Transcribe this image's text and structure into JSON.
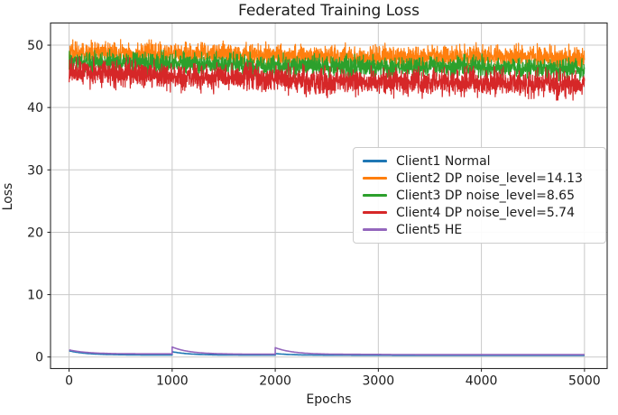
{
  "figure": {
    "background": "#ffffff"
  },
  "chart_data": {
    "type": "line",
    "title": "Federated Training Loss",
    "xlabel": "Epochs",
    "ylabel": "Loss",
    "xlim": [
      -180,
      5220
    ],
    "ylim": [
      -1.85,
      53.55
    ],
    "xticks": [
      0,
      1000,
      2000,
      3000,
      4000,
      5000
    ],
    "yticks": [
      0,
      10,
      20,
      30,
      40,
      50
    ],
    "grid": true,
    "grid_color": "#c9c9c9",
    "spine_color": "#2a2a2a",
    "tick_color": "#1c1c1c",
    "legend_position": "center right",
    "series": [
      {
        "name": "Client1 Normal",
        "color": "#1f77b4",
        "kind": "decay",
        "tau": 170,
        "end": 5000,
        "segments": [
          {
            "start": 0,
            "peak": 1.0,
            "settle": 0.33
          },
          {
            "start": 1000,
            "peak": 0.85,
            "settle": 0.3
          },
          {
            "start": 2000,
            "peak": 0.55,
            "settle": 0.28
          },
          {
            "start": 3000,
            "peak": 0.28,
            "settle": 0.26
          }
        ]
      },
      {
        "name": "Client2 DP noise_level=14.13",
        "color": "#ff7f0e",
        "kind": "noisy",
        "noise_sigma": 0.85,
        "trend": [
          [
            0,
            48.8
          ],
          [
            1000,
            48.6
          ],
          [
            2000,
            48.3
          ],
          [
            3000,
            48.1
          ],
          [
            4000,
            48.2
          ],
          [
            5000,
            47.9
          ]
        ]
      },
      {
        "name": "Client3 DP noise_level=8.65",
        "color": "#2ca02c",
        "kind": "noisy",
        "noise_sigma": 0.8,
        "trend": [
          [
            0,
            47.3
          ],
          [
            1000,
            47.1
          ],
          [
            2000,
            46.7
          ],
          [
            3000,
            46.4
          ],
          [
            4000,
            46.5
          ],
          [
            5000,
            46.1
          ]
        ]
      },
      {
        "name": "Client4 DP noise_level=5.74",
        "color": "#d62728",
        "kind": "noisy",
        "noise_sigma": 1.0,
        "trend": [
          [
            0,
            45.6
          ],
          [
            800,
            45.3
          ],
          [
            1200,
            44.8
          ],
          [
            2000,
            44.7
          ],
          [
            2400,
            44.2
          ],
          [
            3000,
            44.1
          ],
          [
            4000,
            44.0
          ],
          [
            5000,
            43.7
          ]
        ]
      },
      {
        "name": "Client5 HE",
        "color": "#9467bd",
        "kind": "decay",
        "tau": 170,
        "end": 5000,
        "segments": [
          {
            "start": 0,
            "peak": 1.15,
            "settle": 0.5
          },
          {
            "start": 1000,
            "peak": 1.6,
            "settle": 0.45
          },
          {
            "start": 2000,
            "peak": 1.5,
            "settle": 0.42
          },
          {
            "start": 3000,
            "peak": 0.42,
            "settle": 0.38
          }
        ]
      }
    ]
  }
}
